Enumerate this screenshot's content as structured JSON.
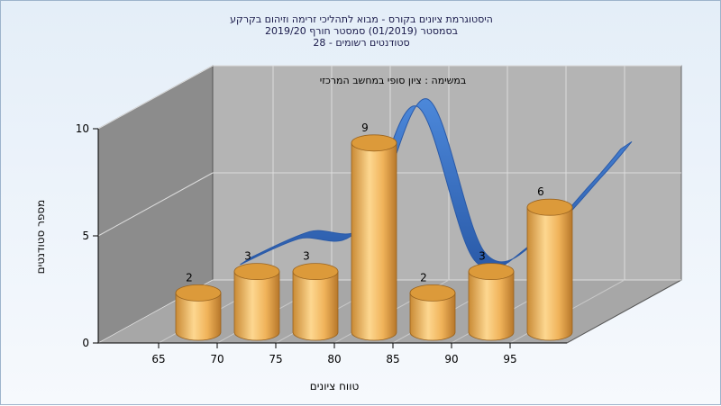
{
  "chart_data": {
    "type": "bar",
    "title_lines": [
      "היסטוגרמת ציונים בקורס - מבוא לתהליכי זרימה וזיהום בקרקע",
      "בסמסטר  (01/2019)  סמסטר חורף  2019/20",
      "סטודנטים רשומים - 28"
    ],
    "annotation": "במשימה : ציון סופי במחשב המרכזי",
    "xlabel": "טווח ציונים",
    "ylabel": "מספר סטודנטים",
    "x_ticks": [
      "65",
      "70",
      "75",
      "80",
      "85",
      "90",
      "95"
    ],
    "y_ticks": [
      "0",
      "5",
      "10"
    ],
    "ylim": [
      0,
      10
    ],
    "categories": [
      "65",
      "70",
      "75",
      "80",
      "85",
      "90",
      "95"
    ],
    "values": [
      2,
      3,
      3,
      9,
      2,
      3,
      6
    ],
    "value_labels": [
      "2",
      "3",
      "3",
      "9",
      "2",
      "3",
      "6"
    ],
    "series": [
      {
        "values": [
          2,
          3,
          3,
          9,
          2,
          3,
          6
        ],
        "style": "3d cylinder bars"
      },
      {
        "style": "smoothed distribution ribbon",
        "x": [
          67.5,
          72.5,
          77.5,
          82.5,
          87.5,
          92.5,
          97.5,
          100
        ],
        "values": [
          2.4,
          3.6,
          4.0,
          9.8,
          2.6,
          3.4,
          6.2,
          7.8
        ]
      }
    ],
    "grid": true,
    "colors": {
      "bar": "#e8a84e",
      "bar_dark": "#b07020",
      "bar_top": "#d9952e",
      "ribbon": "#3a74c8",
      "ribbon_dark": "#2a5aa8",
      "back_wall": "#b4b4b4",
      "side_wall": "#8c8c8c",
      "floor": "#a6a6a6"
    }
  }
}
